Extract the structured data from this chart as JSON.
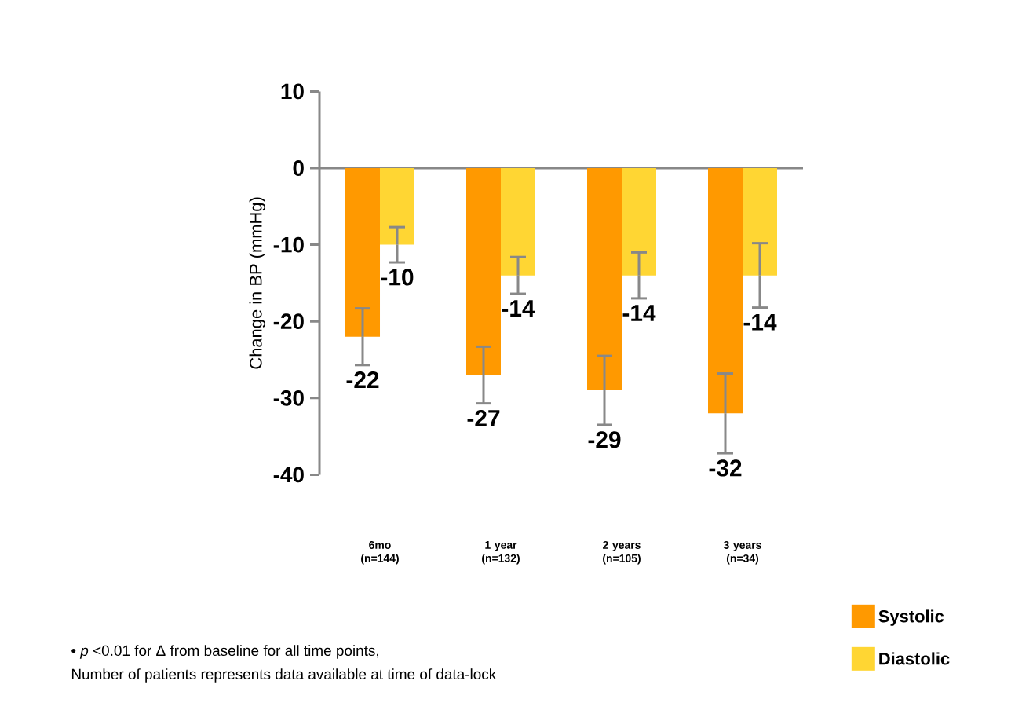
{
  "chart_data": {
    "type": "bar",
    "ylabel": "Change in BP (mmHg)",
    "categories": [
      "6mo (n=144)",
      "1 year (n=132)",
      "2 years (n=105)",
      "3 years (n=34)"
    ],
    "series": [
      {
        "name": "Systolic",
        "color": "#ff9900",
        "values": [
          -22,
          -27,
          -29,
          -32
        ],
        "errors": [
          3.7,
          3.7,
          4.5,
          5.2
        ]
      },
      {
        "name": "Diastolic",
        "color": "#ffd633",
        "values": [
          -10,
          -14,
          -14,
          -14
        ],
        "errors": [
          2.3,
          2.4,
          3,
          4.2
        ]
      }
    ],
    "ylim": [
      -40,
      10
    ],
    "yticks": [
      -40,
      -30,
      -20,
      -10,
      0,
      10
    ],
    "data_labels": true,
    "legend": "bottom right",
    "annotations": [
      "• *p* <0.01 for Δ from baseline for all time points,",
      "Number of patients represents data available at time of data-lock"
    ]
  }
}
